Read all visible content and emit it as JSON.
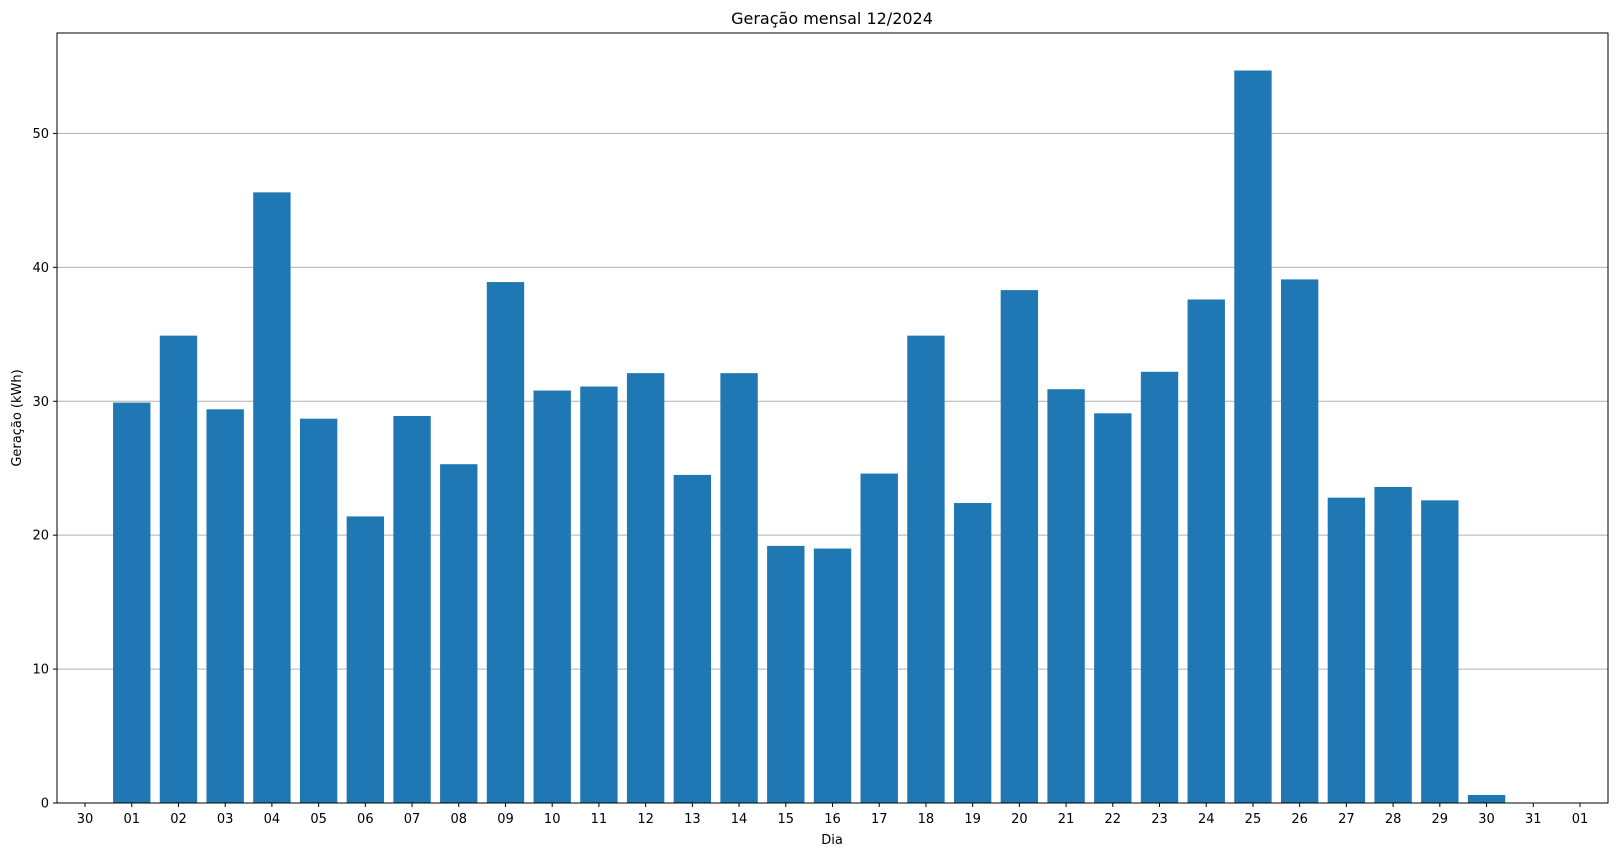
{
  "chart_data": {
    "type": "bar",
    "title": "Geração mensal 12/2024",
    "xlabel": "Dia",
    "ylabel": "Geração (kWh)",
    "ylim": [
      0,
      57.5
    ],
    "yticks": [
      0,
      10,
      20,
      30,
      40,
      50
    ],
    "grid": "y",
    "categories": [
      "30",
      "01",
      "02",
      "03",
      "04",
      "05",
      "06",
      "07",
      "08",
      "09",
      "10",
      "11",
      "12",
      "13",
      "14",
      "15",
      "16",
      "17",
      "18",
      "19",
      "20",
      "21",
      "22",
      "23",
      "24",
      "25",
      "26",
      "27",
      "28",
      "29",
      "30",
      "31",
      "01"
    ],
    "values": [
      0,
      29.9,
      34.9,
      29.4,
      45.6,
      28.7,
      21.4,
      28.9,
      25.3,
      38.9,
      30.8,
      31.1,
      32.1,
      24.5,
      32.1,
      19.2,
      19.0,
      24.6,
      34.9,
      22.4,
      38.3,
      30.9,
      29.1,
      32.2,
      37.6,
      54.7,
      39.1,
      22.8,
      23.6,
      22.6,
      0.6,
      0,
      0
    ],
    "bar_color": "#1f77b4",
    "grid_color": "#b0b0b0"
  }
}
